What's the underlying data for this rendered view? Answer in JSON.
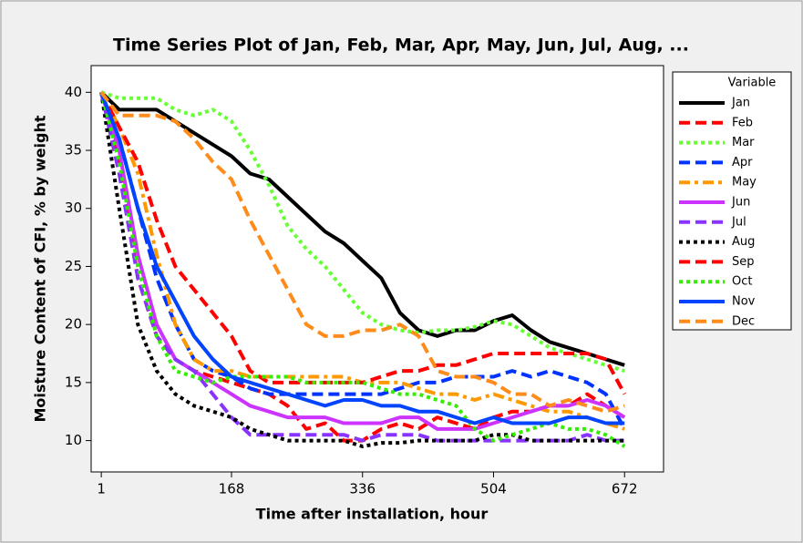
{
  "chart_data": {
    "type": "line",
    "title": "Time Series Plot of Jan, Feb, Mar, Apr, May, Jun, Jul, Aug, ...",
    "xlabel": "Time after installation, hour",
    "ylabel": "Moisture Content of CFI, % by weight",
    "legend_title": "Variable",
    "legend": "right",
    "x": [
      1,
      24,
      48,
      72,
      96,
      120,
      144,
      168,
      192,
      216,
      240,
      264,
      288,
      312,
      336,
      360,
      384,
      408,
      432,
      456,
      480,
      504,
      528,
      552,
      576,
      600,
      624,
      648,
      672
    ],
    "xlim": [
      -12,
      722
    ],
    "xticks": [
      1,
      168,
      336,
      504,
      672
    ],
    "ylim": [
      7.3,
      42.3
    ],
    "yticks": [
      10,
      15,
      20,
      25,
      30,
      35,
      40
    ],
    "series": [
      {
        "name": "Jan",
        "color": "#000000",
        "linestyle": "solid",
        "values": [
          40,
          38.5,
          38.5,
          38.5,
          37.5,
          36.5,
          35.5,
          34.5,
          33,
          32.5,
          31,
          29.5,
          28,
          27,
          25.5,
          24,
          21,
          19.5,
          19,
          19.5,
          19.5,
          20.3,
          20.8,
          19.5,
          18.5,
          18,
          17.5,
          17,
          16.5
        ]
      },
      {
        "name": "Feb",
        "color": "#ff0000",
        "linestyle": "dashed",
        "values": [
          40,
          34,
          24,
          19,
          17,
          16,
          15.5,
          15,
          14.5,
          14,
          13,
          11,
          11.5,
          10,
          10,
          11,
          11.5,
          11,
          12,
          11.5,
          11,
          12,
          12.5,
          12.5,
          13,
          13,
          14,
          13,
          12
        ]
      },
      {
        "name": "Mar",
        "color": "#66ff33",
        "linestyle": "dotted",
        "values": [
          40,
          39.5,
          39.5,
          39.5,
          38.5,
          38,
          38.5,
          37.5,
          35,
          32,
          28.5,
          26.5,
          25,
          23,
          21,
          20,
          19.5,
          19.3,
          19.5,
          19.5,
          19.8,
          20.3,
          20,
          19,
          18,
          17.5,
          17,
          16.5,
          16
        ]
      },
      {
        "name": "Apr",
        "color": "#0033ff",
        "linestyle": "dashed",
        "values": [
          40,
          36,
          30,
          24,
          20,
          17,
          16,
          15.5,
          14.5,
          14,
          14,
          14,
          14,
          14,
          14,
          14,
          14.5,
          15,
          15,
          15.5,
          15.5,
          15.5,
          16,
          15.5,
          16,
          15.5,
          15,
          14,
          11
        ]
      },
      {
        "name": "May",
        "color": "#ff9900",
        "linestyle": "dashdot",
        "values": [
          40,
          37,
          33,
          26,
          20,
          17,
          16,
          16,
          15.5,
          15.5,
          15.5,
          15.5,
          15.5,
          15.5,
          15,
          15,
          15,
          14.5,
          14,
          14,
          13.5,
          14,
          13.5,
          13,
          12.5,
          12.5,
          12,
          11.5,
          11
        ]
      },
      {
        "name": "Jun",
        "color": "#cc33ff",
        "linestyle": "solid",
        "values": [
          40,
          35,
          26,
          20,
          17,
          16,
          15,
          14,
          13,
          12.5,
          12,
          12,
          12,
          11.5,
          11.5,
          11.5,
          12,
          12,
          11,
          11,
          11,
          11.5,
          12,
          12.5,
          13,
          13,
          13.5,
          13,
          12
        ]
      },
      {
        "name": "Jul",
        "color": "#8833ff",
        "linestyle": "dashed",
        "values": [
          40,
          33,
          24,
          19,
          17,
          16,
          14,
          12,
          10.5,
          10.5,
          10.5,
          10.5,
          10.5,
          10.5,
          10,
          10.5,
          10.5,
          10.5,
          10,
          10,
          10,
          10,
          10,
          10,
          10,
          10,
          10.5,
          10,
          10
        ]
      },
      {
        "name": "Aug",
        "color": "#000000",
        "linestyle": "dotted",
        "values": [
          40,
          30,
          20,
          16,
          14,
          13,
          12.5,
          12,
          11,
          10.5,
          10,
          10,
          10,
          10,
          9.5,
          9.8,
          9.8,
          10,
          10,
          10,
          10,
          10.5,
          10.5,
          10,
          10,
          10,
          10,
          10,
          10
        ]
      },
      {
        "name": "Sep",
        "color": "#ff0000",
        "linestyle": "dashed",
        "values": [
          40,
          37,
          34,
          29,
          25,
          23,
          21,
          19,
          16,
          15,
          15,
          15,
          15,
          15,
          15,
          15.5,
          16,
          16,
          16.5,
          16.5,
          17,
          17.5,
          17.5,
          17.5,
          17.5,
          17.5,
          17.5,
          17,
          14
        ]
      },
      {
        "name": "Oct",
        "color": "#33ee00",
        "linestyle": "dotted",
        "values": [
          40,
          34,
          25,
          19,
          16,
          15.5,
          15,
          15.5,
          15.5,
          15.5,
          15.5,
          15,
          15,
          15,
          15,
          14.5,
          14,
          14,
          13.5,
          13,
          11,
          10,
          10.5,
          11,
          11.5,
          11,
          11,
          10.5,
          9.5
        ]
      },
      {
        "name": "Nov",
        "color": "#0044ff",
        "linestyle": "solid",
        "values": [
          40,
          36,
          30,
          25,
          22,
          19,
          17,
          15.5,
          15,
          14.5,
          14,
          13.5,
          13,
          13.5,
          13.5,
          13,
          13,
          12.5,
          12.5,
          12,
          11.5,
          12,
          11.5,
          11.5,
          11.5,
          12,
          12,
          11.5,
          11.5
        ]
      },
      {
        "name": "Dec",
        "color": "#ff8c1a",
        "linestyle": "dashed",
        "values": [
          40,
          38,
          38,
          38,
          37.5,
          36,
          34,
          32.5,
          29,
          26,
          23,
          20,
          19,
          19,
          19.5,
          19.5,
          20,
          19,
          16,
          15.5,
          15.5,
          15,
          14,
          14,
          13,
          13.5,
          13,
          12.5,
          13
        ]
      }
    ]
  }
}
